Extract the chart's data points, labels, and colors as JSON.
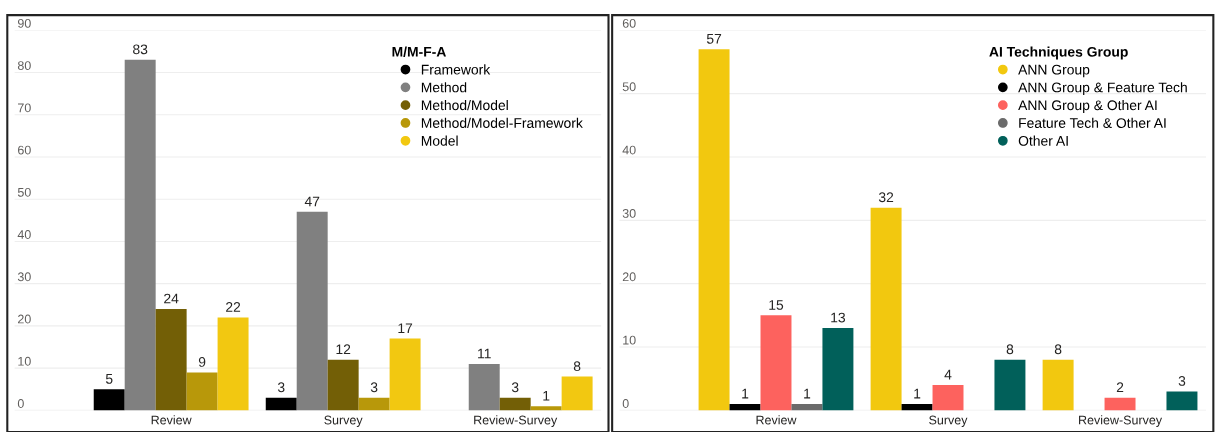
{
  "chart_data": [
    {
      "type": "bar",
      "legend_title": "M/M-F-A",
      "categories": [
        "Review",
        "Survey",
        "Review-Survey"
      ],
      "ylim": [
        0,
        90
      ],
      "yticks": [
        0,
        10,
        20,
        30,
        40,
        50,
        60,
        70,
        80,
        90
      ],
      "grid": "y",
      "legend": "top right",
      "data_labels": true,
      "series": [
        {
          "name": "Framework",
          "color": "#000000",
          "values": [
            5,
            3,
            null
          ]
        },
        {
          "name": "Method",
          "color": "#808080",
          "values": [
            83,
            47,
            11
          ]
        },
        {
          "name": "Method/Model",
          "color": "#735f06",
          "values": [
            24,
            12,
            3
          ]
        },
        {
          "name": "Method/Model-Framework",
          "color": "#b8980a",
          "values": [
            9,
            3,
            1
          ]
        },
        {
          "name": "Model",
          "color": "#f2c811",
          "values": [
            22,
            17,
            8
          ]
        }
      ]
    },
    {
      "type": "bar",
      "legend_title": "AI Techniques Group",
      "categories": [
        "Review",
        "Survey",
        "Review-Survey"
      ],
      "ylim": [
        0,
        60
      ],
      "yticks": [
        0,
        10,
        20,
        30,
        40,
        50,
        60
      ],
      "grid": "y",
      "legend": "top right",
      "data_labels": true,
      "series": [
        {
          "name": "ANN Group",
          "color": "#f2c80f",
          "values": [
            57,
            32,
            8
          ]
        },
        {
          "name": "ANN Group & Feature Tech",
          "color": "#000000",
          "values": [
            1,
            1,
            null
          ]
        },
        {
          "name": "ANN Group & Other AI",
          "color": "#fd625e",
          "values": [
            15,
            4,
            2
          ]
        },
        {
          "name": "Feature Tech & Other AI",
          "color": "#6b6b6b",
          "values": [
            1,
            null,
            null
          ]
        },
        {
          "name": "Other AI",
          "color": "#01605a",
          "values": [
            13,
            8,
            3
          ]
        }
      ]
    }
  ]
}
